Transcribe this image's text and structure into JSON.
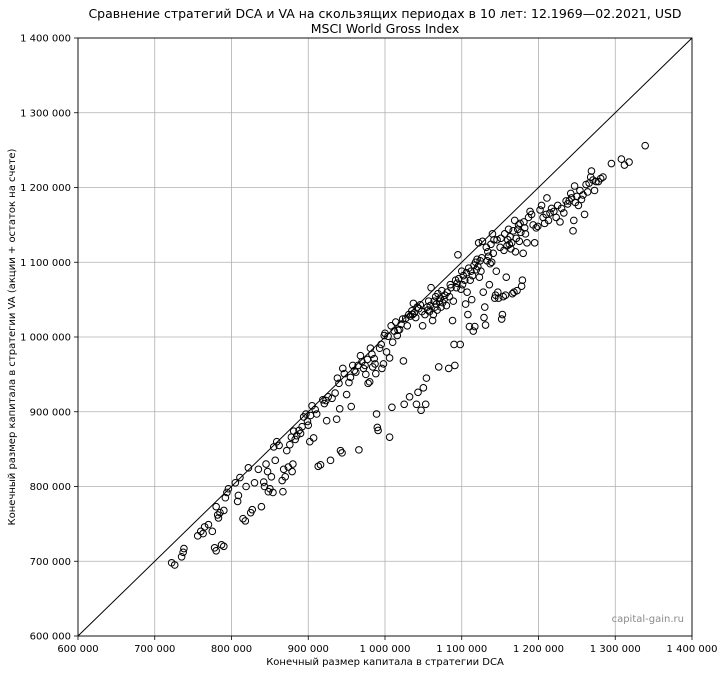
{
  "chart_data": {
    "type": "scatter",
    "title": "Сравнение стратегий DCA и VA на скользящих периодах в 10 лет: 12.1969—02.2021, USD",
    "subtitle": "MSCI World Gross Index",
    "xlabel": "Конечный размер капитала в стратегии DCA",
    "ylabel": "Конечный размер капитала в стратегии VA (акции + остаток на счете)",
    "watermark": "capital-gain.ru",
    "xlim": [
      600000,
      1400000
    ],
    "ylim": [
      600000,
      1400000
    ],
    "grid": true,
    "reference_line": "y = x",
    "x_ticks": [
      600000,
      700000,
      800000,
      900000,
      1000000,
      1100000,
      1200000,
      1300000,
      1400000
    ],
    "x_tick_labels": [
      "600 000",
      "700 000",
      "800 000",
      "900 000",
      "1 000 000",
      "1 100 000",
      "1 200 000",
      "1 300 000",
      "1 400 000"
    ],
    "y_ticks": [
      600000,
      700000,
      800000,
      900000,
      1000000,
      1100000,
      1200000,
      1300000,
      1400000
    ],
    "y_tick_labels": [
      "600 000",
      "700 000",
      "800 000",
      "900 000",
      "1 000 000",
      "1 100 000",
      "1 200 000",
      "1 300 000",
      "1 400 000"
    ],
    "points": [
      [
        722000,
        698000
      ],
      [
        726000,
        695000
      ],
      [
        735000,
        706000
      ],
      [
        737000,
        712000
      ],
      [
        738000,
        717000
      ],
      [
        756000,
        734000
      ],
      [
        760000,
        740000
      ],
      [
        763000,
        737000
      ],
      [
        765000,
        746000
      ],
      [
        770000,
        749000
      ],
      [
        775000,
        740000
      ],
      [
        778000,
        718000
      ],
      [
        780000,
        714000
      ],
      [
        780000,
        773000
      ],
      [
        782000,
        762000
      ],
      [
        783000,
        758000
      ],
      [
        785000,
        765000
      ],
      [
        787000,
        722000
      ],
      [
        790000,
        720000
      ],
      [
        790000,
        768000
      ],
      [
        792000,
        785000
      ],
      [
        794000,
        792000
      ],
      [
        796000,
        797000
      ],
      [
        805000,
        805000
      ],
      [
        808000,
        780000
      ],
      [
        809000,
        788000
      ],
      [
        811000,
        812000
      ],
      [
        815000,
        757000
      ],
      [
        818000,
        754000
      ],
      [
        819000,
        800000
      ],
      [
        822000,
        825000
      ],
      [
        825000,
        765000
      ],
      [
        827000,
        769000
      ],
      [
        830000,
        805000
      ],
      [
        835000,
        823000
      ],
      [
        839000,
        773000
      ],
      [
        842000,
        806000
      ],
      [
        843000,
        800000
      ],
      [
        845000,
        830000
      ],
      [
        847000,
        820000
      ],
      [
        848000,
        793000
      ],
      [
        850000,
        797000
      ],
      [
        852000,
        813000
      ],
      [
        854000,
        792000
      ],
      [
        855000,
        853000
      ],
      [
        857000,
        835000
      ],
      [
        859000,
        860000
      ],
      [
        862000,
        855000
      ],
      [
        866000,
        808000
      ],
      [
        867000,
        793000
      ],
      [
        868000,
        823000
      ],
      [
        870000,
        813000
      ],
      [
        872000,
        848000
      ],
      [
        874000,
        826000
      ],
      [
        876000,
        856000
      ],
      [
        878000,
        866000
      ],
      [
        879000,
        820000
      ],
      [
        880000,
        830000
      ],
      [
        881000,
        874000
      ],
      [
        883000,
        863000
      ],
      [
        885000,
        868000
      ],
      [
        888000,
        875000
      ],
      [
        890000,
        871000
      ],
      [
        892000,
        880000
      ],
      [
        894000,
        893000
      ],
      [
        897000,
        897000
      ],
      [
        899000,
        887000
      ],
      [
        900000,
        882000
      ],
      [
        902000,
        860000
      ],
      [
        903000,
        895000
      ],
      [
        905000,
        908000
      ],
      [
        907000,
        865000
      ],
      [
        909000,
        903000
      ],
      [
        911000,
        897000
      ],
      [
        913000,
        827000
      ],
      [
        916000,
        829000
      ],
      [
        919000,
        916000
      ],
      [
        921000,
        911000
      ],
      [
        923000,
        915000
      ],
      [
        924000,
        888000
      ],
      [
        926000,
        920000
      ],
      [
        929000,
        835000
      ],
      [
        931000,
        918000
      ],
      [
        935000,
        925000
      ],
      [
        937000,
        890000
      ],
      [
        938000,
        945000
      ],
      [
        940000,
        938000
      ],
      [
        941000,
        904000
      ],
      [
        942000,
        848000
      ],
      [
        944000,
        845000
      ],
      [
        945000,
        958000
      ],
      [
        947000,
        951000
      ],
      [
        950000,
        923000
      ],
      [
        953000,
        939000
      ],
      [
        955000,
        946000
      ],
      [
        956000,
        907000
      ],
      [
        958000,
        962000
      ],
      [
        960000,
        955000
      ],
      [
        962000,
        953000
      ],
      [
        965000,
        962000
      ],
      [
        966000,
        849000
      ],
      [
        968000,
        975000
      ],
      [
        970000,
        967000
      ],
      [
        972000,
        958000
      ],
      [
        974000,
        962000
      ],
      [
        975000,
        950000
      ],
      [
        977000,
        970000
      ],
      [
        978000,
        938000
      ],
      [
        980000,
        940000
      ],
      [
        981000,
        985000
      ],
      [
        983000,
        977000
      ],
      [
        984000,
        960000
      ],
      [
        986000,
        971000
      ],
      [
        987000,
        964000
      ],
      [
        988000,
        951000
      ],
      [
        989000,
        897000
      ],
      [
        990000,
        879000
      ],
      [
        991000,
        875000
      ],
      [
        993000,
        985000
      ],
      [
        995000,
        990000
      ],
      [
        996000,
        958000
      ],
      [
        998000,
        964000
      ],
      [
        999000,
        1002000
      ],
      [
        1000000,
        1005000
      ],
      [
        1002000,
        980000
      ],
      [
        1004000,
        1001000
      ],
      [
        1006000,
        972000
      ],
      [
        1006000,
        866000
      ],
      [
        1008000,
        1015000
      ],
      [
        1009000,
        906000
      ],
      [
        1010000,
        993000
      ],
      [
        1012000,
        1008000
      ],
      [
        1014000,
        1020000
      ],
      [
        1016000,
        1002000
      ],
      [
        1017000,
        1009000
      ],
      [
        1019000,
        1010000
      ],
      [
        1021000,
        1017000
      ],
      [
        1023000,
        1024000
      ],
      [
        1024000,
        968000
      ],
      [
        1025000,
        910000
      ],
      [
        1027000,
        1025000
      ],
      [
        1029000,
        1015000
      ],
      [
        1031000,
        1030000
      ],
      [
        1032000,
        920000
      ],
      [
        1033000,
        1028000
      ],
      [
        1035000,
        1035000
      ],
      [
        1036000,
        1030000
      ],
      [
        1037000,
        1045000
      ],
      [
        1038000,
        1032000
      ],
      [
        1040000,
        1026000
      ],
      [
        1041000,
        910000
      ],
      [
        1042000,
        1040000
      ],
      [
        1043000,
        926000
      ],
      [
        1044000,
        1038000
      ],
      [
        1046000,
        1043000
      ],
      [
        1047000,
        902000
      ],
      [
        1048000,
        1034000
      ],
      [
        1049000,
        1015000
      ],
      [
        1050000,
        932000
      ],
      [
        1052000,
        1030000
      ],
      [
        1053000,
        910000
      ],
      [
        1054000,
        945000
      ],
      [
        1055000,
        1040000
      ],
      [
        1056000,
        1036000
      ],
      [
        1057000,
        1048000
      ],
      [
        1058000,
        1034000
      ],
      [
        1059000,
        1042000
      ],
      [
        1060000,
        1066000
      ],
      [
        1062000,
        1022000
      ],
      [
        1063000,
        1030000
      ],
      [
        1064000,
        1048000
      ],
      [
        1065000,
        1040000
      ],
      [
        1066000,
        1054000
      ],
      [
        1067000,
        1044000
      ],
      [
        1068000,
        1036000
      ],
      [
        1069000,
        1058000
      ],
      [
        1070000,
        960000
      ],
      [
        1071000,
        1048000
      ],
      [
        1072000,
        1052000
      ],
      [
        1073000,
        1040000
      ],
      [
        1074000,
        1062000
      ],
      [
        1075000,
        1046000
      ],
      [
        1077000,
        1050000
      ],
      [
        1078000,
        1056000
      ],
      [
        1080000,
        1042000
      ],
      [
        1081000,
        1060000
      ],
      [
        1083000,
        958000
      ],
      [
        1084000,
        1054000
      ],
      [
        1085000,
        1070000
      ],
      [
        1086000,
        1066000
      ],
      [
        1088000,
        1022000
      ],
      [
        1089000,
        1048000
      ],
      [
        1090000,
        990000
      ],
      [
        1091000,
        962000
      ],
      [
        1092000,
        1076000
      ],
      [
        1093000,
        1066000
      ],
      [
        1094000,
        1072000
      ],
      [
        1095000,
        1110000
      ],
      [
        1096000,
        1078000
      ],
      [
        1098000,
        990000
      ],
      [
        1099000,
        1064000
      ],
      [
        1100000,
        1088000
      ],
      [
        1101000,
        1070000
      ],
      [
        1102000,
        1082000
      ],
      [
        1104000,
        1076000
      ],
      [
        1105000,
        1044000
      ],
      [
        1106000,
        1086000
      ],
      [
        1107000,
        1060000
      ],
      [
        1108000,
        1030000
      ],
      [
        1109000,
        1092000
      ],
      [
        1110000,
        1014000
      ],
      [
        1111000,
        1076000
      ],
      [
        1112000,
        1088000
      ],
      [
        1113000,
        1050000
      ],
      [
        1114000,
        1082000
      ],
      [
        1115000,
        1008000
      ],
      [
        1116000,
        1096000
      ],
      [
        1117000,
        1014000
      ],
      [
        1118000,
        1100000
      ],
      [
        1119000,
        1090000
      ],
      [
        1120000,
        1104000
      ],
      [
        1121000,
        1094000
      ],
      [
        1122000,
        1126000
      ],
      [
        1123000,
        1080000
      ],
      [
        1124000,
        1102000
      ],
      [
        1125000,
        1088000
      ],
      [
        1126000,
        1106000
      ],
      [
        1127000,
        1128000
      ],
      [
        1128000,
        1060000
      ],
      [
        1129000,
        1026000
      ],
      [
        1130000,
        1040000
      ],
      [
        1131000,
        1016000
      ],
      [
        1132000,
        1120000
      ],
      [
        1133000,
        1102000
      ],
      [
        1134000,
        1114000
      ],
      [
        1135000,
        1108000
      ],
      [
        1136000,
        1070000
      ],
      [
        1137000,
        1098000
      ],
      [
        1138000,
        1124000
      ],
      [
        1139000,
        1100000
      ],
      [
        1140000,
        1138000
      ],
      [
        1141000,
        1112000
      ],
      [
        1142000,
        1130000
      ],
      [
        1143000,
        1052000
      ],
      [
        1144000,
        1056000
      ],
      [
        1145000,
        1088000
      ],
      [
        1146000,
        1130000
      ],
      [
        1147000,
        1060000
      ],
      [
        1148000,
        1052000
      ],
      [
        1150000,
        1120000
      ],
      [
        1151000,
        1132000
      ],
      [
        1152000,
        1024000
      ],
      [
        1153000,
        1030000
      ],
      [
        1154000,
        1054000
      ],
      [
        1155000,
        1116000
      ],
      [
        1156000,
        1138000
      ],
      [
        1157000,
        1056000
      ],
      [
        1158000,
        1080000
      ],
      [
        1159000,
        1122000
      ],
      [
        1160000,
        1130000
      ],
      [
        1161000,
        1144000
      ],
      [
        1162000,
        1124000
      ],
      [
        1163000,
        1134000
      ],
      [
        1164000,
        1118000
      ],
      [
        1165000,
        1126000
      ],
      [
        1166000,
        1058000
      ],
      [
        1167000,
        1142000
      ],
      [
        1168000,
        1060000
      ],
      [
        1169000,
        1156000
      ],
      [
        1170000,
        1114000
      ],
      [
        1171000,
        1132000
      ],
      [
        1172000,
        1062000
      ],
      [
        1173000,
        1144000
      ],
      [
        1174000,
        1150000
      ],
      [
        1175000,
        1128000
      ],
      [
        1176000,
        1152000
      ],
      [
        1177000,
        1140000
      ],
      [
        1178000,
        1068000
      ],
      [
        1179000,
        1076000
      ],
      [
        1180000,
        1112000
      ],
      [
        1181000,
        1154000
      ],
      [
        1182000,
        1146000
      ],
      [
        1183000,
        1138000
      ],
      [
        1185000,
        1126000
      ],
      [
        1187000,
        1160000
      ],
      [
        1189000,
        1168000
      ],
      [
        1191000,
        1164000
      ],
      [
        1193000,
        1150000
      ],
      [
        1195000,
        1126000
      ],
      [
        1197000,
        1146000
      ],
      [
        1199000,
        1148000
      ],
      [
        1202000,
        1170000
      ],
      [
        1204000,
        1176000
      ],
      [
        1206000,
        1160000
      ],
      [
        1208000,
        1152000
      ],
      [
        1210000,
        1164000
      ],
      [
        1211000,
        1186000
      ],
      [
        1213000,
        1156000
      ],
      [
        1215000,
        1166000
      ],
      [
        1217000,
        1172000
      ],
      [
        1220000,
        1168000
      ],
      [
        1223000,
        1160000
      ],
      [
        1225000,
        1176000
      ],
      [
        1228000,
        1154000
      ],
      [
        1230000,
        1172000
      ],
      [
        1233000,
        1166000
      ],
      [
        1236000,
        1182000
      ],
      [
        1238000,
        1178000
      ],
      [
        1240000,
        1182000
      ],
      [
        1242000,
        1192000
      ],
      [
        1243000,
        1186000
      ],
      [
        1245000,
        1142000
      ],
      [
        1246000,
        1156000
      ],
      [
        1247000,
        1202000
      ],
      [
        1248000,
        1180000
      ],
      [
        1250000,
        1188000
      ],
      [
        1252000,
        1176000
      ],
      [
        1254000,
        1196000
      ],
      [
        1256000,
        1184000
      ],
      [
        1258000,
        1190000
      ],
      [
        1260000,
        1164000
      ],
      [
        1262000,
        1204000
      ],
      [
        1264000,
        1194000
      ],
      [
        1266000,
        1206000
      ],
      [
        1268000,
        1214000
      ],
      [
        1269000,
        1222000
      ],
      [
        1271000,
        1210000
      ],
      [
        1273000,
        1196000
      ],
      [
        1275000,
        1208000
      ],
      [
        1278000,
        1208000
      ],
      [
        1281000,
        1212000
      ],
      [
        1284000,
        1214000
      ],
      [
        1295000,
        1232000
      ],
      [
        1308000,
        1238000
      ],
      [
        1312000,
        1230000
      ],
      [
        1318000,
        1234000
      ],
      [
        1339000,
        1256000
      ]
    ]
  }
}
